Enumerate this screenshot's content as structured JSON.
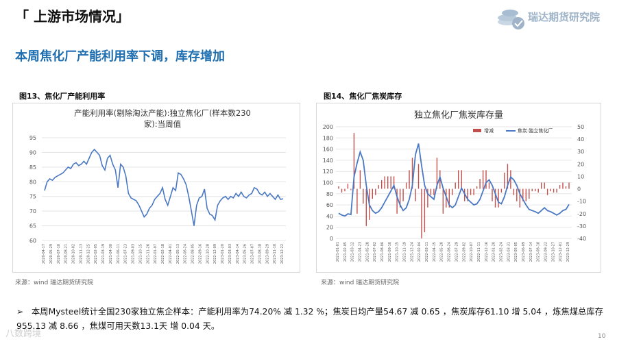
{
  "header": {
    "title": "「 上游市场情况」"
  },
  "logo": {
    "text": "瑞达期货研究院"
  },
  "subtitle": "本周焦化厂产能利用率下调，库存增加",
  "figures": {
    "fig13_title": "图13、焦化厂产能利用率",
    "fig14_title": "图14、焦化厂焦炭库存",
    "source13": "来源：wind   瑞达期货研究院",
    "source14": "来源：wind   瑞达期货研究院"
  },
  "bullet": "本周Mysteel统计全国230家独立焦企样本：产能利用率为74.20% 减 1.32 %；焦炭日均产量54.67 减 0.65 ，焦炭库存61.10 增 5.04 ，炼焦煤总库存955.13 减 8.66 ，焦煤可用天数13.1天 增 0.04 天。",
  "page_number": "10",
  "watermark": "八数跨境",
  "colors": {
    "accent": "#1f6fb0",
    "line": "#4a78c2",
    "bar": "#c0504d"
  },
  "chart_data": [
    {
      "type": "line",
      "title": "产能利用率(剔除淘汰产能):独立焦化厂(样本数230家):当周值",
      "title_lines": [
        "产能利用率(剔除淘汰产能):独立焦化厂(样本数230",
        "家):当周值"
      ],
      "ylim": [
        60,
        95
      ],
      "yticks": [
        60,
        65,
        70,
        75,
        80,
        85,
        90,
        95
      ],
      "xticks": [
        "2020-04-17",
        "2020-05-29",
        "2020-07-10",
        "2020-08-21",
        "2020-10-02",
        "2020-11-13",
        "2020-12-25",
        "2021-02-05",
        "2021-03-19",
        "2021-04-30",
        "2021-06-11",
        "2021-07-23",
        "2021-09-03",
        "2021-10-15",
        "2021-11-26",
        "2022-01-07",
        "2022-02-18",
        "2022-04-01",
        "2022-05-13",
        "2022-06-24",
        "2022-08-05",
        "2022-09-16",
        "2022-10-28",
        "2022-12-09",
        "2023-01-20",
        "2023-03-03",
        "2023-04-14",
        "2023-05-26",
        "2023-07-07",
        "2023-08-18",
        "2023-09-29",
        "2023-11-10",
        "2023-12-22"
      ],
      "grid": true,
      "series": [
        {
          "values": [
            77,
            80,
            81,
            80.5,
            81.5,
            82,
            82.5,
            83,
            84,
            85,
            84.5,
            86,
            86.5,
            85.5,
            86,
            87,
            86,
            88,
            90,
            91,
            90,
            89,
            85.5,
            84,
            88,
            89,
            86,
            84,
            78,
            86,
            85,
            82,
            76,
            74.5,
            74,
            73.5,
            72,
            70,
            68,
            69,
            71,
            72,
            74,
            75,
            76,
            78,
            74,
            72,
            75,
            78,
            77,
            83,
            82.5,
            81,
            79,
            75,
            70,
            65,
            72,
            74.5,
            75,
            77.5,
            71,
            69,
            68.5,
            67,
            72,
            73.5,
            74.5,
            75,
            74,
            75,
            74.5,
            76,
            75,
            76.5,
            75,
            74.5,
            75.5,
            76,
            78,
            77.5,
            76,
            75.5,
            76.5,
            75,
            76,
            75,
            74,
            75.5,
            74,
            74.2
          ]
        }
      ]
    },
    {
      "type": "bar+line",
      "title": "独立焦化厂焦炭库存量",
      "legend": [
        "增减",
        "焦炭:独立焦化厂"
      ],
      "legend_position": "top",
      "ylim_left": [
        0,
        200
      ],
      "yticks_left": [
        0,
        20,
        40,
        60,
        80,
        100,
        120,
        140,
        160,
        180,
        200
      ],
      "ylim_right": [
        -40,
        50
      ],
      "yticks_right": [
        -40,
        -30,
        -20,
        -10,
        0,
        10,
        20,
        30,
        40,
        50
      ],
      "xticks": [
        "2021-01-01",
        "2021-02-05",
        "2021-03-12",
        "2021-04-23",
        "2021-05-28",
        "2021-07-02",
        "2021-08-06",
        "2021-09-10",
        "2021-10-15",
        "2021-11-19",
        "2021-12-24",
        "2022-02-04",
        "2022-03-11",
        "2022-04-15",
        "2022-05-20",
        "2022-06-24",
        "2022-07-29",
        "2022-09-02",
        "2022-10-07",
        "2022-11-11",
        "2022-12-16",
        "2023-01-20",
        "2023-02-24",
        "2023-03-31",
        "2023-05-05",
        "2023-06-09",
        "2023-07-14",
        "2023-08-18",
        "2023-09-22",
        "2023-10-27",
        "2023-12-01",
        "2023-12-29"
      ],
      "series": [
        {
          "name": "焦炭:独立焦化厂",
          "axis": "left",
          "values": [
            45,
            42,
            40,
            44,
            43,
            110,
            135,
            155,
            140,
            95,
            60,
            50,
            45,
            48,
            55,
            65,
            75,
            85,
            95,
            75,
            60,
            50,
            55,
            70,
            95,
            150,
            170,
            130,
            95,
            80,
            75,
            70,
            95,
            110,
            90,
            75,
            60,
            55,
            60,
            75,
            90,
            80,
            70,
            65,
            60,
            62,
            70,
            85,
            100,
            105,
            95,
            80,
            65,
            62,
            75,
            95,
            110,
            105,
            95,
            80,
            70,
            60,
            52,
            50,
            48,
            45,
            50,
            55,
            50,
            48,
            45,
            42,
            45,
            50,
            52,
            61
          ]
        },
        {
          "name": "增减",
          "axis": "right",
          "values": [
            2,
            -3,
            -2,
            4,
            -1,
            45,
            -20,
            15,
            -12,
            -30,
            -25,
            -8,
            -5,
            3,
            7,
            10,
            10,
            10,
            10,
            -20,
            -15,
            -10,
            5,
            15,
            25,
            -10,
            20,
            -40,
            -35,
            -15,
            -5,
            -5,
            25,
            15,
            -20,
            -15,
            -15,
            -5,
            5,
            15,
            15,
            -10,
            -10,
            -5,
            -5,
            2,
            8,
            15,
            15,
            5,
            -10,
            -15,
            -15,
            -3,
            13,
            20,
            15,
            -5,
            -10,
            -15,
            -10,
            -10,
            -8,
            -2,
            -2,
            -3,
            5,
            5,
            -5,
            -2,
            -3,
            -3,
            3,
            5,
            2,
            5
          ]
        }
      ]
    }
  ]
}
